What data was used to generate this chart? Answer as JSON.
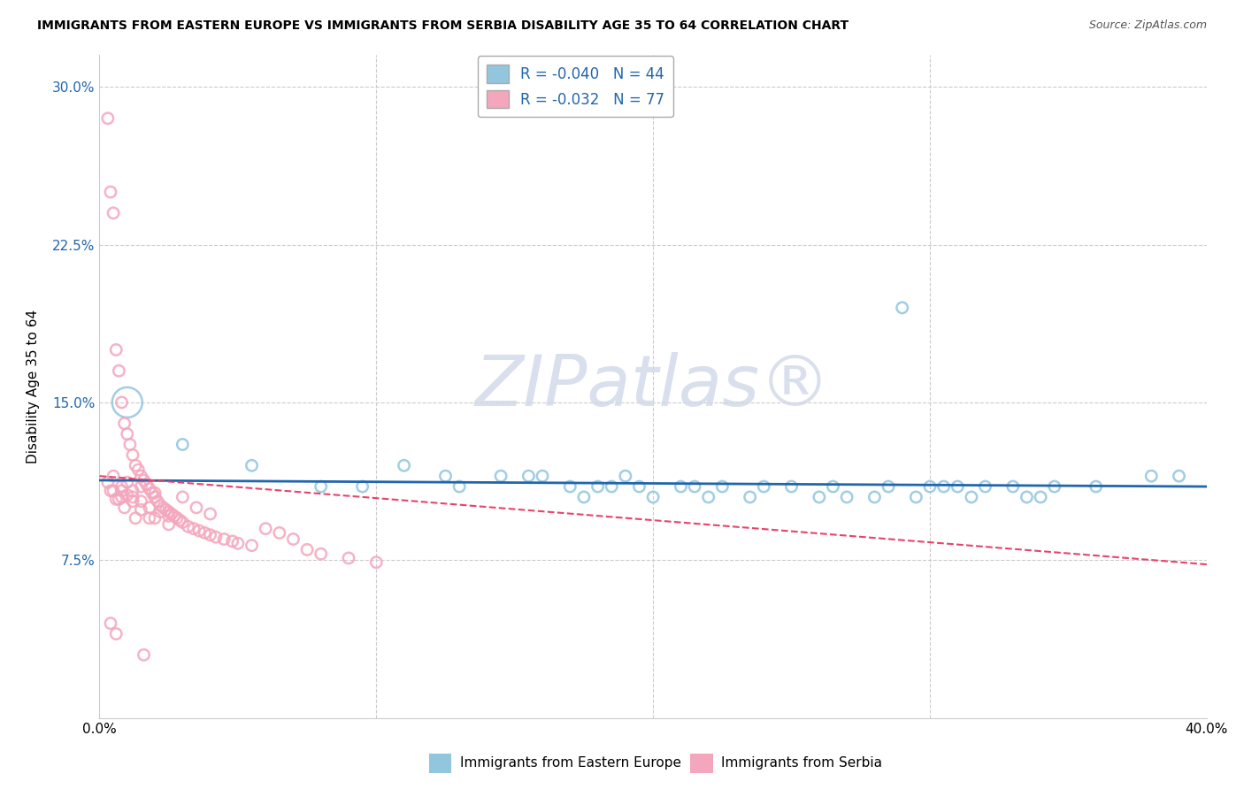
{
  "title": "IMMIGRANTS FROM EASTERN EUROPE VS IMMIGRANTS FROM SERBIA DISABILITY AGE 35 TO 64 CORRELATION CHART",
  "source": "Source: ZipAtlas.com",
  "xlabel_bottom": [
    "Immigrants from Eastern Europe",
    "Immigrants from Serbia"
  ],
  "ylabel": "Disability Age 35 to 64",
  "watermark": "ZIPatlas®",
  "xlim": [
    0.0,
    0.4
  ],
  "ylim": [
    0.0,
    0.315
  ],
  "xticks": [
    0.0,
    0.1,
    0.2,
    0.3,
    0.4
  ],
  "yticks": [
    0.075,
    0.15,
    0.225,
    0.3
  ],
  "ytick_labels": [
    "7.5%",
    "15.0%",
    "22.5%",
    "30.0%"
  ],
  "xtick_labels": [
    "0.0%",
    "",
    "",
    "",
    "40.0%"
  ],
  "legend_r_blue": "-0.040",
  "legend_n_blue": "44",
  "legend_r_pink": "-0.032",
  "legend_n_pink": "77",
  "blue_color": "#92c5de",
  "pink_color": "#f4a6bd",
  "trend_blue_color": "#2166ac",
  "trend_pink_color": "#e8436a",
  "blue_scatter_x": [
    0.01,
    0.03,
    0.055,
    0.08,
    0.095,
    0.11,
    0.125,
    0.13,
    0.145,
    0.155,
    0.16,
    0.17,
    0.175,
    0.18,
    0.185,
    0.19,
    0.195,
    0.2,
    0.21,
    0.215,
    0.22,
    0.225,
    0.235,
    0.24,
    0.25,
    0.26,
    0.265,
    0.27,
    0.28,
    0.285,
    0.29,
    0.295,
    0.3,
    0.305,
    0.31,
    0.315,
    0.32,
    0.33,
    0.335,
    0.34,
    0.345,
    0.36,
    0.38,
    0.39
  ],
  "blue_scatter_y": [
    0.15,
    0.13,
    0.12,
    0.11,
    0.11,
    0.12,
    0.115,
    0.11,
    0.115,
    0.115,
    0.115,
    0.11,
    0.105,
    0.11,
    0.11,
    0.115,
    0.11,
    0.105,
    0.11,
    0.11,
    0.105,
    0.11,
    0.105,
    0.11,
    0.11,
    0.105,
    0.11,
    0.105,
    0.105,
    0.11,
    0.195,
    0.105,
    0.11,
    0.11,
    0.11,
    0.105,
    0.11,
    0.11,
    0.105,
    0.105,
    0.11,
    0.11,
    0.115,
    0.115
  ],
  "blue_scatter_sizes": [
    600,
    80,
    80,
    80,
    80,
    80,
    80,
    80,
    80,
    80,
    80,
    80,
    80,
    80,
    80,
    80,
    80,
    80,
    80,
    80,
    80,
    80,
    80,
    80,
    80,
    80,
    80,
    80,
    80,
    80,
    80,
    80,
    80,
    80,
    80,
    80,
    80,
    80,
    80,
    80,
    80,
    80,
    80,
    80
  ],
  "pink_scatter_x": [
    0.003,
    0.004,
    0.005,
    0.006,
    0.007,
    0.008,
    0.009,
    0.01,
    0.011,
    0.012,
    0.013,
    0.014,
    0.015,
    0.016,
    0.017,
    0.018,
    0.019,
    0.02,
    0.021,
    0.022,
    0.023,
    0.024,
    0.025,
    0.026,
    0.027,
    0.028,
    0.029,
    0.03,
    0.032,
    0.034,
    0.036,
    0.038,
    0.04,
    0.042,
    0.045,
    0.048,
    0.05,
    0.055,
    0.06,
    0.065,
    0.07,
    0.075,
    0.08,
    0.09,
    0.1,
    0.005,
    0.008,
    0.012,
    0.018,
    0.022,
    0.025,
    0.015,
    0.02,
    0.03,
    0.035,
    0.04,
    0.008,
    0.01,
    0.012,
    0.015,
    0.018,
    0.003,
    0.004,
    0.006,
    0.02,
    0.025,
    0.01,
    0.012,
    0.015,
    0.008,
    0.005,
    0.007,
    0.009,
    0.013,
    0.016,
    0.004,
    0.006
  ],
  "pink_scatter_y": [
    0.285,
    0.25,
    0.24,
    0.175,
    0.165,
    0.15,
    0.14,
    0.135,
    0.13,
    0.125,
    0.12,
    0.118,
    0.115,
    0.113,
    0.111,
    0.109,
    0.107,
    0.105,
    0.103,
    0.101,
    0.1,
    0.099,
    0.098,
    0.097,
    0.096,
    0.095,
    0.094,
    0.093,
    0.091,
    0.09,
    0.089,
    0.088,
    0.087,
    0.086,
    0.085,
    0.084,
    0.083,
    0.082,
    0.09,
    0.088,
    0.085,
    0.08,
    0.078,
    0.076,
    0.074,
    0.115,
    0.11,
    0.105,
    0.1,
    0.098,
    0.096,
    0.11,
    0.107,
    0.105,
    0.1,
    0.097,
    0.108,
    0.106,
    0.103,
    0.099,
    0.095,
    0.112,
    0.108,
    0.104,
    0.095,
    0.092,
    0.112,
    0.108,
    0.103,
    0.105,
    0.108,
    0.104,
    0.1,
    0.095,
    0.03,
    0.045,
    0.04
  ],
  "pink_scatter_sizes": [
    80,
    80,
    80,
    80,
    80,
    80,
    80,
    80,
    80,
    80,
    80,
    80,
    80,
    80,
    80,
    80,
    80,
    80,
    80,
    80,
    80,
    80,
    80,
    80,
    80,
    80,
    80,
    80,
    80,
    80,
    80,
    80,
    80,
    80,
    80,
    80,
    80,
    80,
    80,
    80,
    80,
    80,
    80,
    80,
    80,
    80,
    80,
    80,
    80,
    80,
    80,
    80,
    80,
    80,
    80,
    80,
    80,
    80,
    80,
    80,
    80,
    80,
    80,
    80,
    80,
    80,
    80,
    80,
    80,
    80,
    80,
    80,
    80,
    80,
    80,
    80,
    80
  ],
  "blue_trend_x0": 0.0,
  "blue_trend_y0": 0.113,
  "blue_trend_x1": 0.4,
  "blue_trend_y1": 0.11,
  "pink_trend_x0": 0.0,
  "pink_trend_y0": 0.115,
  "pink_trend_x1": 0.4,
  "pink_trend_y1": 0.073
}
